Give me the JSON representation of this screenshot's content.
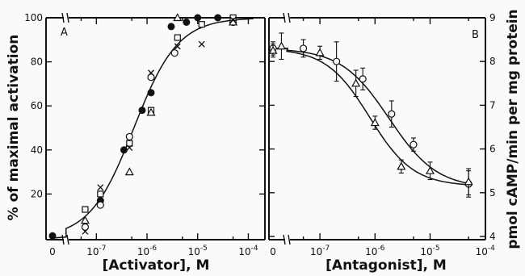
{
  "chart_data": [
    {
      "panel": "A",
      "type": "scatter",
      "xlabel": "[Activator], M",
      "ylabel": "% of maximal activation",
      "x_scale": "log",
      "x_zero_label": "0",
      "x_ticks": [
        1e-07,
        1e-06,
        1e-05,
        0.0001
      ],
      "x_tick_labels": [
        {
          "base": "10",
          "exp": "-7"
        },
        {
          "base": "10",
          "exp": "-6"
        },
        {
          "base": "10",
          "exp": "-5"
        },
        {
          "base": "10",
          "exp": "-4"
        }
      ],
      "ylim": [
        0,
        100
      ],
      "y_ticks": [
        20,
        40,
        60,
        80
      ],
      "y_tick_labels": [
        "20",
        "40",
        "60",
        "80"
      ],
      "y_top_label": "100",
      "series": [
        {
          "marker": "filled-circle",
          "points": [
            [
              0,
              1
            ],
            [
              1.2e-07,
              17
            ],
            [
              3.5e-07,
              40
            ],
            [
              8e-07,
              58
            ],
            [
              1.2e-06,
              66
            ],
            [
              3e-06,
              96
            ],
            [
              6e-06,
              98
            ],
            [
              1e-05,
              100
            ],
            [
              2.5e-05,
              100
            ]
          ]
        },
        {
          "marker": "open-circle",
          "points": [
            [
              6e-08,
              5
            ],
            [
              1.2e-07,
              15
            ],
            [
              4.5e-07,
              46
            ],
            [
              1.2e-06,
              73
            ],
            [
              3.5e-06,
              84
            ],
            [
              5e-05,
              98
            ]
          ]
        },
        {
          "marker": "open-square",
          "points": [
            [
              6e-08,
              13
            ],
            [
              1.2e-07,
              20
            ],
            [
              4.5e-07,
              43
            ],
            [
              1.2e-06,
              58
            ],
            [
              4e-06,
              91
            ],
            [
              1.2e-05,
              97
            ],
            [
              5e-05,
              100
            ]
          ]
        },
        {
          "marker": "open-triangle",
          "points": [
            [
              6e-08,
              8
            ],
            [
              4.5e-07,
              30
            ],
            [
              1.2e-06,
              57
            ],
            [
              4e-06,
              100
            ],
            [
              5e-05,
              98
            ]
          ]
        },
        {
          "marker": "cross",
          "points": [
            [
              6e-08,
              3
            ],
            [
              1.2e-07,
              23
            ],
            [
              4.5e-07,
              41
            ],
            [
              1.2e-06,
              75
            ],
            [
              4e-06,
              87
            ],
            [
              1.2e-05,
              88
            ],
            [
              5e-05,
              99
            ]
          ]
        }
      ],
      "fit_curve": {
        "type": "logistic",
        "ec50": 5.5e-07,
        "hill": 1.0,
        "bottom": 0,
        "top": 100
      }
    },
    {
      "panel": "B",
      "type": "scatter",
      "xlabel": "[Antagonist], M",
      "ylabel": "pmol cAMP/min per mg protein",
      "x_scale": "log",
      "x_zero_label": "0",
      "x_ticks": [
        1e-07,
        1e-06,
        1e-05,
        0.0001
      ],
      "x_tick_labels": [
        {
          "base": "10",
          "exp": "-7"
        },
        {
          "base": "10",
          "exp": "-6"
        },
        {
          "base": "10",
          "exp": "-5"
        },
        {
          "base": "10",
          "exp": "-4"
        }
      ],
      "ylim": [
        4,
        9
      ],
      "y_ticks": [
        4,
        5,
        6,
        7,
        8,
        9
      ],
      "y_tick_labels": [
        "4",
        "5",
        "6",
        "7",
        "8",
        "9"
      ],
      "series": [
        {
          "marker": "open-circle",
          "points": [
            [
              0,
              8.3,
              0.15
            ],
            [
              5e-08,
              8.3,
              0.2
            ],
            [
              2e-07,
              8.0,
              0.45
            ],
            [
              6e-07,
              7.6,
              0.25
            ],
            [
              2e-06,
              6.8,
              0.3
            ],
            [
              5e-06,
              6.1,
              0.15
            ],
            [
              5e-05,
              5.2,
              0.3
            ]
          ]
        },
        {
          "marker": "open-triangle",
          "points": [
            [
              0,
              8.25,
              0.15
            ],
            [
              2e-08,
              8.35,
              0.3
            ],
            [
              1e-07,
              8.2,
              0.15
            ],
            [
              4.5e-07,
              7.5,
              0.3
            ],
            [
              1e-06,
              6.6,
              0.15
            ],
            [
              3e-06,
              5.6,
              0.15
            ],
            [
              1e-05,
              5.5,
              0.2
            ],
            [
              5e-05,
              5.25,
              0.3
            ]
          ]
        }
      ],
      "fit_curves": [
        {
          "series": 0,
          "type": "logistic",
          "ic50": 1.8e-06,
          "hill": 1.0,
          "top": 8.3,
          "bottom": 5.1
        },
        {
          "series": 1,
          "type": "logistic",
          "ic50": 8e-07,
          "hill": 1.1,
          "top": 8.3,
          "bottom": 5.15
        }
      ]
    }
  ],
  "panel_labels": {
    "a": "A",
    "b": "B"
  }
}
